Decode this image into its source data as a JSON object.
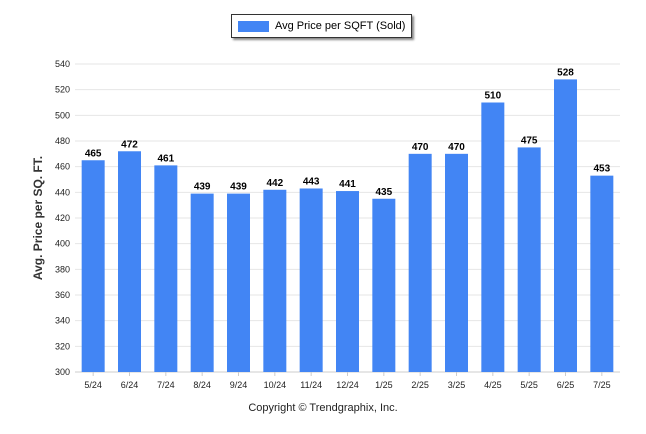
{
  "legend": {
    "label": "Avg Price per SQFT (Sold)"
  },
  "footer": {
    "text": "Copyright © Trendgraphix, Inc."
  },
  "colors": {
    "bar": "#4285f4",
    "grid": "#e6e6e6",
    "axis": "#cccccc"
  },
  "chart_data": {
    "type": "bar",
    "title": "",
    "xlabel": "",
    "ylabel": "Avg. Price per SQ. FT.",
    "ylim": [
      300,
      540
    ],
    "ytick_step": 20,
    "grid": true,
    "legend_position": "top-center",
    "categories": [
      "5/24",
      "6/24",
      "7/24",
      "8/24",
      "9/24",
      "10/24",
      "11/24",
      "12/24",
      "1/25",
      "2/25",
      "3/25",
      "4/25",
      "5/25",
      "6/25",
      "7/25"
    ],
    "series": [
      {
        "name": "Avg Price per SQFT (Sold)",
        "values": [
          465,
          472,
          461,
          439,
          439,
          442,
          443,
          441,
          435,
          470,
          470,
          510,
          475,
          528,
          453
        ]
      }
    ]
  }
}
